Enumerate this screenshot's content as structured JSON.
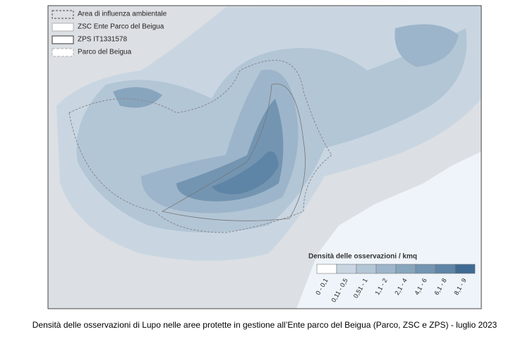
{
  "legend": {
    "items": [
      {
        "label": "Area di influenza ambientale"
      },
      {
        "label": "ZSC Ente Parco del Beigua"
      },
      {
        "label": "ZPS IT1331578"
      },
      {
        "label": "Parco del Beigua"
      }
    ]
  },
  "density_legend": {
    "title": "Densità delle osservazioni / kmq",
    "classes": [
      {
        "label": "0 - 0,1",
        "color": "#ffffff"
      },
      {
        "label": "0,11 - 0,5",
        "color": "#c9d6e2"
      },
      {
        "label": "0,51 - 1",
        "color": "#b3c6d6"
      },
      {
        "label": "1,1 - 2",
        "color": "#9db5ca"
      },
      {
        "label": "2,1 - 4",
        "color": "#88a5be"
      },
      {
        "label": "4,1 - 6",
        "color": "#7395b2"
      },
      {
        "label": "6,1 - 8",
        "color": "#5e85a6"
      },
      {
        "label": "8,1 - 9",
        "color": "#3f6b93"
      }
    ]
  },
  "caption": "Densità delle osservazioni di Lupo nelle aree protette in gestione all’Ente parco del Beigua (Parco, ZSC e ZPS) - luglio 2023"
}
